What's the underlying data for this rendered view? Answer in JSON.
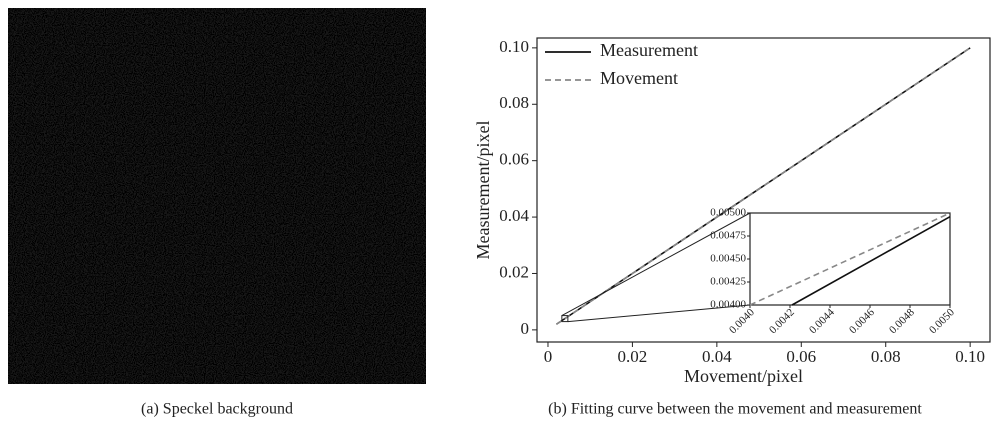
{
  "figure": {
    "caption_a": "(a) Speckel background",
    "caption_b": "(b) Fitting curve between the movement and measurement"
  },
  "chart_data": [
    {
      "type": "line",
      "xlabel": "Movement/pixel",
      "ylabel": "Measurement/pixel",
      "x": [
        0.002,
        0.1
      ],
      "series": [
        {
          "name": "Measurement",
          "color": "#111111",
          "dash": false,
          "values": [
            0.002,
            0.1
          ]
        },
        {
          "name": "Movement",
          "color": "#888888",
          "dash": true,
          "values": [
            0.002,
            0.1
          ]
        }
      ],
      "xlim": [
        -0.0026,
        0.1047
      ],
      "ylim": [
        -0.0043,
        0.1035
      ],
      "xticks": [
        0,
        0.02,
        0.04,
        0.06,
        0.08,
        {
          "value": 0.1,
          "label": "0.10"
        }
      ],
      "yticks": [
        0,
        0.02,
        0.04,
        0.06,
        0.08,
        {
          "value": 0.1,
          "label": "0.10"
        }
      ],
      "legend": "upper-left"
    },
    {
      "type": "line",
      "series": [
        {
          "name": "Measurement",
          "color": "#111111",
          "dash": false,
          "x": [
            0.00421,
            0.005
          ],
          "values": [
            0.004,
            0.00496
          ]
        },
        {
          "name": "Movement",
          "color": "#888888",
          "dash": true,
          "x": [
            0.004,
            0.005
          ],
          "values": [
            0.004,
            0.005
          ]
        }
      ],
      "xlim": [
        0.004,
        0.005
      ],
      "ylim": [
        0.004,
        0.005
      ],
      "xticks": [
        {
          "value": 0.004,
          "label": "0.0040"
        },
        0.0042,
        0.0044,
        0.0046,
        0.0048,
        {
          "value": 0.005,
          "label": "0.0050"
        }
      ],
      "yticks": [
        {
          "value": 0.004,
          "label": "0.00400"
        },
        0.00425,
        {
          "value": 0.0045,
          "label": "0.00450"
        },
        0.00475,
        {
          "value": 0.005,
          "label": "0.00500"
        }
      ]
    }
  ]
}
